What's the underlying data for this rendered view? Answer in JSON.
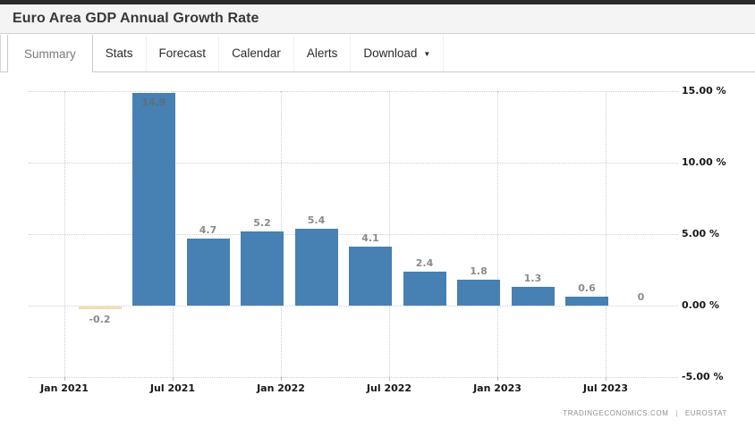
{
  "header": {
    "title": "Euro Area GDP Annual Growth Rate"
  },
  "tabs": {
    "items": [
      {
        "label": "Summary",
        "active": true
      },
      {
        "label": "Stats",
        "active": false
      },
      {
        "label": "Forecast",
        "active": false
      },
      {
        "label": "Calendar",
        "active": false
      },
      {
        "label": "Alerts",
        "active": false
      },
      {
        "label": "Download",
        "active": false,
        "has_caret": true
      }
    ]
  },
  "icons": {
    "caret_down": "▼"
  },
  "chart_data": {
    "type": "bar",
    "title": "Euro Area GDP Annual Growth Rate",
    "unit": "%",
    "values": [
      -0.2,
      14.9,
      4.7,
      5.2,
      5.4,
      4.1,
      2.4,
      1.8,
      1.3,
      0.6,
      0
    ],
    "value_labels": [
      "-0.2",
      "14.9",
      "4.7",
      "5.2",
      "5.4",
      "4.1",
      "2.4",
      "1.8",
      "1.3",
      "0.6",
      "0"
    ],
    "periods": [
      "Q1 2021",
      "Q2 2021",
      "Q3 2021",
      "Q4 2021",
      "Q1 2022",
      "Q2 2022",
      "Q3 2022",
      "Q4 2022",
      "Q1 2023",
      "Q2 2023",
      "Q3 2023"
    ],
    "x_tick_labels": [
      "Jan 2021",
      "Jul 2021",
      "Jan 2022",
      "Jul 2022",
      "Jan 2023",
      "Jul 2023"
    ],
    "y_tick_labels": [
      "15.00 %",
      "10.00 %",
      "5.00 %",
      "0.00 %",
      "-5.00 %"
    ],
    "y_tick_values": [
      15,
      10,
      5,
      0,
      -5
    ],
    "ylim": [
      -5,
      15
    ],
    "grid": "dotted",
    "legend": "none",
    "bar_color": "#4780b2",
    "negative_bar_color": "#f5ddb0",
    "label_color": "#8a8a8a",
    "inside_label_color": "#5f6d7a"
  },
  "attribution": {
    "source_left": "TRADINGECONOMICS.COM",
    "separator": "|",
    "source_right": "EUROSTAT"
  }
}
